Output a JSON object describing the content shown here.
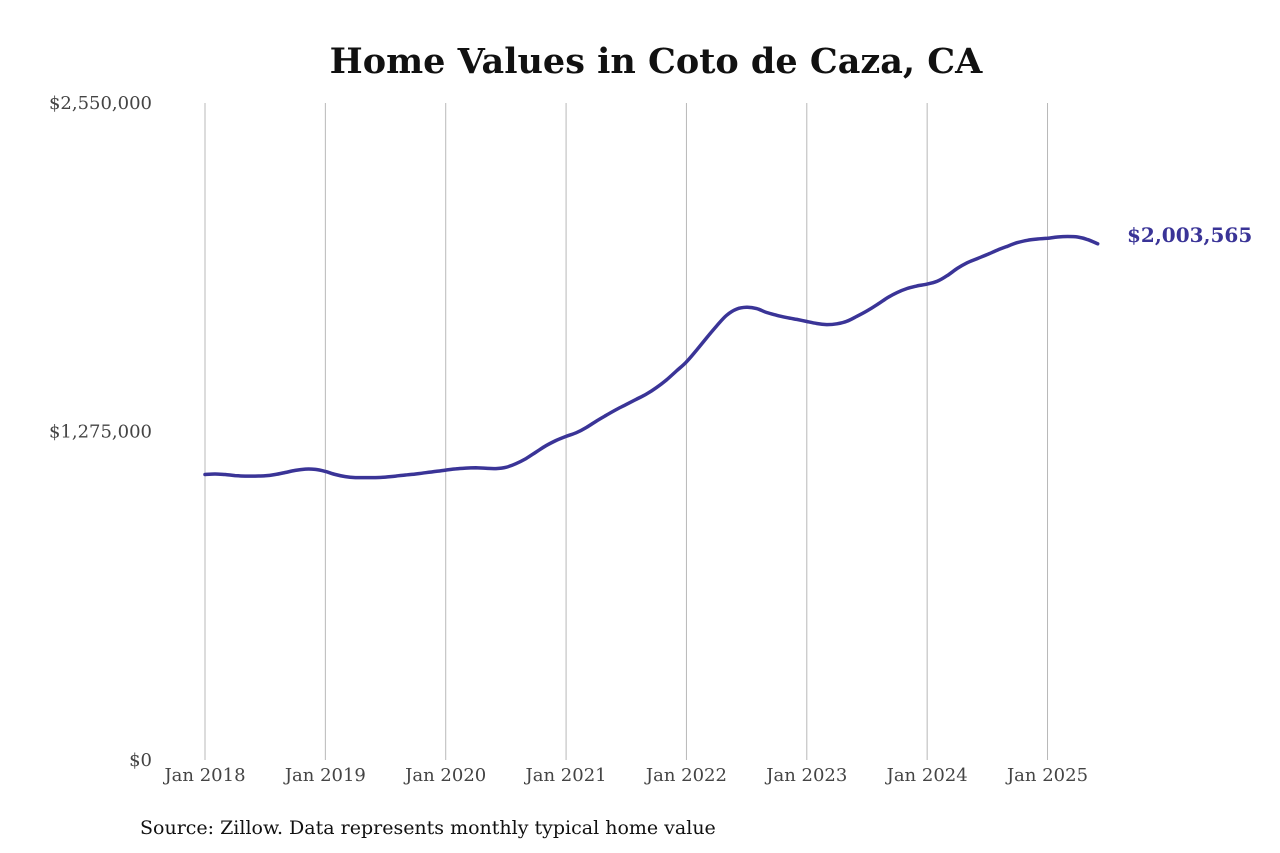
{
  "chart_data": {
    "type": "line",
    "title": "Home Values in Coto de Caza, CA",
    "source": "Source: Zillow. Data represents monthly typical home value",
    "ylim": [
      0,
      2550000
    ],
    "yticks": [
      "$0",
      "$1,275,000",
      "$2,550,000"
    ],
    "yticks_values": [
      0,
      1275000,
      2550000
    ],
    "x_ticks": [
      "Jan 2018",
      "Jan 2019",
      "Jan 2020",
      "Jan 2021",
      "Jan 2022",
      "Jan 2023",
      "Jan 2024",
      "Jan 2025"
    ],
    "x_range": [
      "2018-01",
      "2025-06"
    ],
    "grid": "vertical at each Jan",
    "line_color": "#3a3497",
    "end_label": "$2,003,565",
    "series": [
      {
        "x": [
          "2018-01",
          "2018-02",
          "2018-03",
          "2018-04",
          "2018-05",
          "2018-06",
          "2018-07",
          "2018-08",
          "2018-09",
          "2018-10",
          "2018-11",
          "2018-12",
          "2019-01",
          "2019-02",
          "2019-03",
          "2019-04",
          "2019-05",
          "2019-06",
          "2019-07",
          "2019-08",
          "2019-09",
          "2019-10",
          "2019-11",
          "2019-12",
          "2020-01",
          "2020-02",
          "2020-03",
          "2020-04",
          "2020-05",
          "2020-06",
          "2020-07",
          "2020-08",
          "2020-09",
          "2020-10",
          "2020-11",
          "2020-12",
          "2021-01",
          "2021-02",
          "2021-03",
          "2021-04",
          "2021-05",
          "2021-06",
          "2021-07",
          "2021-08",
          "2021-09",
          "2021-10",
          "2021-11",
          "2021-12",
          "2022-01",
          "2022-02",
          "2022-03",
          "2022-04",
          "2022-05",
          "2022-06",
          "2022-07",
          "2022-08",
          "2022-09",
          "2022-10",
          "2022-11",
          "2022-12",
          "2023-01",
          "2023-02",
          "2023-03",
          "2023-04",
          "2023-05",
          "2023-06",
          "2023-07",
          "2023-08",
          "2023-09",
          "2023-10",
          "2023-11",
          "2023-12",
          "2024-01",
          "2024-02",
          "2024-03",
          "2024-04",
          "2024-05",
          "2024-06",
          "2024-07",
          "2024-08",
          "2024-09",
          "2024-10",
          "2024-11",
          "2024-12",
          "2025-01",
          "2025-02",
          "2025-03",
          "2025-04",
          "2025-05",
          "2025-06"
        ],
        "values": [
          1108000,
          1110000,
          1108000,
          1104000,
          1102000,
          1102000,
          1103000,
          1108000,
          1116000,
          1124000,
          1129000,
          1128000,
          1120000,
          1108000,
          1100000,
          1096000,
          1096000,
          1096000,
          1098000,
          1102000,
          1106000,
          1110000,
          1115000,
          1120000,
          1125000,
          1130000,
          1133000,
          1134000,
          1132000,
          1131000,
          1136000,
          1150000,
          1170000,
          1195000,
          1220000,
          1240000,
          1256000,
          1270000,
          1290000,
          1315000,
          1338000,
          1360000,
          1380000,
          1400000,
          1420000,
          1445000,
          1475000,
          1510000,
          1545000,
          1590000,
          1638000,
          1684000,
          1726000,
          1750000,
          1757000,
          1752000,
          1737000,
          1726000,
          1717000,
          1710000,
          1702000,
          1694000,
          1690000,
          1693000,
          1703000,
          1722000,
          1743000,
          1767000,
          1793000,
          1814000,
          1830000,
          1840000,
          1847000,
          1858000,
          1880000,
          1908000,
          1930000,
          1946000,
          1962000,
          1979000,
          1994000,
          2008000,
          2017000,
          2022000,
          2025000,
          2030000,
          2032000,
          2030000,
          2020000,
          2003565
        ]
      }
    ]
  }
}
